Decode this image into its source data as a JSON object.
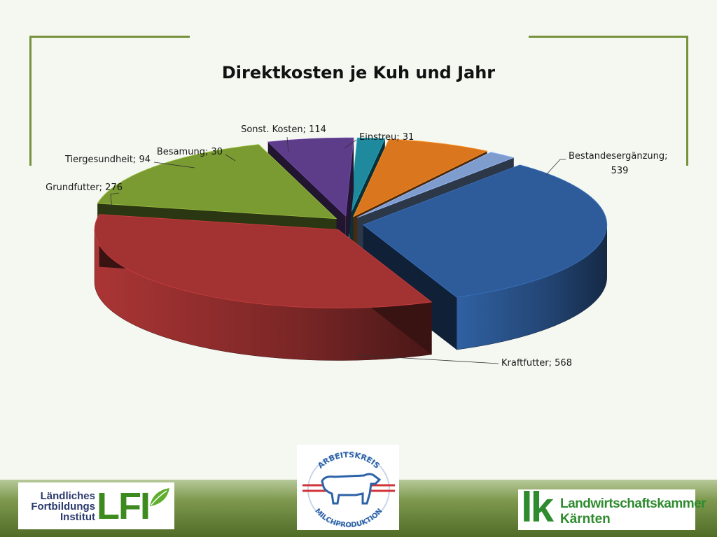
{
  "slide": {
    "accent_color": "#76933c"
  },
  "chart_data": {
    "type": "pie",
    "title": "Direktkosten je Kuh und Jahr",
    "slices": [
      {
        "label": "Bestandesergänzung",
        "value": 539,
        "color": "#2e5c9a",
        "label_text_1": "Bestandesergänzung;",
        "label_text_2": "539"
      },
      {
        "label": "Kraftfutter",
        "value": 568,
        "color": "#a33232",
        "label_text_1": "Kraftfutter; 568"
      },
      {
        "label": "Grundfutter",
        "value": 276,
        "color": "#7a9a32",
        "label_text_1": "Grundfutter; 276"
      },
      {
        "label": "Tiergesundheit",
        "value": 94,
        "color": "#5d3d8a",
        "label_text_1": "Tiergesundheit; 94"
      },
      {
        "label": "Besamung",
        "value": 30,
        "color": "#1f8a9e",
        "label_text_1": "Besamung; 30"
      },
      {
        "label": "Sonst. Kosten",
        "value": 114,
        "color": "#d9761e",
        "label_text_1": "Sonst. Kosten; 114"
      },
      {
        "label": "Einstreu",
        "value": 31,
        "color": "#7f9ccf",
        "label_text_1": "Einstreu; 31"
      }
    ],
    "exploded": true,
    "style": "3d",
    "legend": "none"
  },
  "logos": {
    "lfi": {
      "name_line1": "Ländliches",
      "name_line2": "Fortbildungs",
      "name_line3": "Institut",
      "mark": "LFI"
    },
    "arbeitskreis": {
      "top_text": "ARBEITSKREIS",
      "bottom_text": "MILCHPRODUKTION"
    },
    "lk": {
      "mark": "lk",
      "line1": "Landwirtschaftskammer",
      "line2": "Kärnten"
    }
  }
}
